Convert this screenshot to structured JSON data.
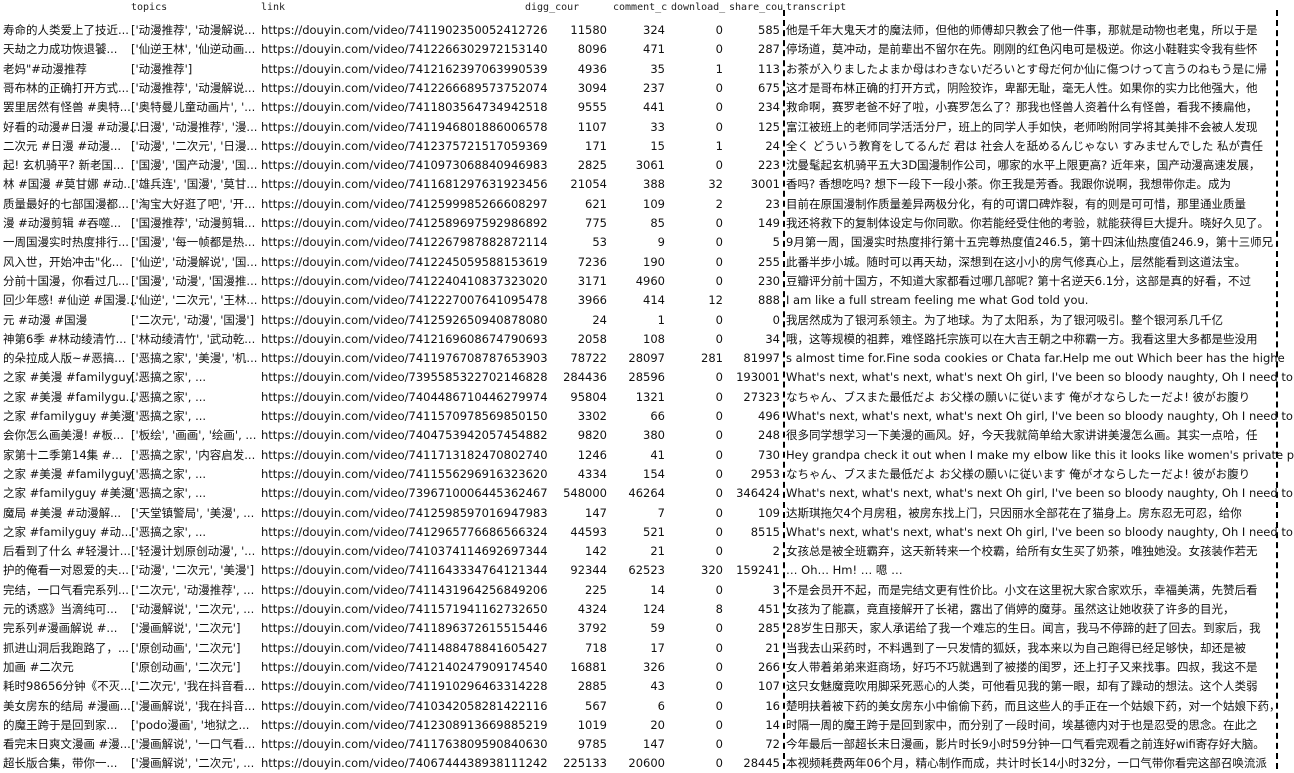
{
  "table": {
    "header": [
      "",
      "topics",
      "link",
      "digg_cour",
      "comment_c",
      "download_",
      "share_cou",
      "transcript"
    ],
    "rows": [
      [
        "寿命的人类爱上了技近...",
        "['动漫推荐', '动漫解说...",
        "https://douyin.com/video/7411902350052412726",
        11580,
        324,
        0,
        585,
        "他是千年大鬼天才的魔法师，但他的师傅却只教会了他一件事，那就是动物也老鬼，所以于是"
      ],
      [
        "天劫之力成功恢退饕...",
        "['仙逆王林', '仙逆动画...",
        "https://douyin.com/video/7412266302972153140",
        8096,
        471,
        0,
        287,
        "停场道，莫冲动，是前辈出不留尔在先。刚刚的红色闪电可是极逆。你这小鞋鞋实令我有些怀"
      ],
      [
        "老妈\"#动漫推荐",
        "['动漫推荐']",
        "https://douyin.com/video/7412162397063990539",
        4936,
        35,
        1,
        113,
        "お茶が入りましたよまか母はわきないだろいとす母だ何か仙に傷つけって言うのねもう是に帰"
      ],
      [
        "哥布林的正确打开方式...",
        "['动漫推荐', '动漫解说...",
        "https://douyin.com/video/7412266689573752074",
        3094,
        237,
        0,
        675,
        "这才是哥布林正确的打开方式，阴险狡诈，卑鄙无耻，毫无人性。如果你的实力比他强大，他"
      ],
      [
        "罢里居然有怪兽 #奥特...",
        "['奥特曼儿童动画片', '...",
        "https://douyin.com/video/7411803564734942518",
        9555,
        441,
        0,
        234,
        "救命啊，赛罗老爸不好了啦，小赛罗怎么了？那我也怪兽人资着什么有怪兽，看我不揍扁他，"
      ],
      [
        "好看的动漫#日漫 #动漫...",
        "['日漫', '动漫推荐', '漫...",
        "https://douyin.com/video/7411946801886006578",
        1107,
        33,
        0,
        125,
        "富江被班上的老师同学活活分尸，班上的同学人手如快，老师哟附同学将其美排不会被人发现"
      ],
      [
        "二次元 #日漫 #动漫...",
        "['动漫', '二次元', '日漫...",
        "https://douyin.com/video/7412375721517059369",
        171,
        15,
        1,
        24,
        "全く どういう教育をしてるんだ 君は 社会人を舐めるんじゃない すみませんでした 私が責任"
      ],
      [
        "起! 玄机骑平? 新老国...",
        "['国漫', '国产动漫', '国...",
        "https://douyin.com/video/7410973068840946983",
        2825,
        3061,
        0,
        223,
        "沈曼髦起玄机骑平五大3D国漫制作公司，哪家的水平上限更高? 近年来，国产动漫高速发展，"
      ],
      [
        "林 #国漫 #莫甘娜 #动...",
        "['雄兵连', '国漫', '莫甘...",
        "https://douyin.com/video/7411681297631923456",
        21054,
        388,
        32,
        3001,
        "香吗? 香想吃吗? 想下一段下一段小茶。你王我是芳香。我跟你说啊，我想带你走。成为"
      ],
      [
        "质量最好的七部国漫都...",
        "['淘宝大好逛了吧', '开...",
        "https://douyin.com/video/7412599985266608297",
        621,
        109,
        2,
        23,
        "目前在原国漫制作质量差异两极分化，有的可谓口碑炸裂，有的则是可可惜，那里通业质量"
      ],
      [
        "漫 #动漫剪辑 #吞噬...",
        "['国漫推荐', '动漫剪辑...",
        "https://douyin.com/video/7412589697592986892",
        775,
        85,
        0,
        149,
        "我还将救下的复制体设定与你同歌。你若能经受住他的考验，就能获得巨大提升。晓好久见了。"
      ],
      [
        "一周国漫实时热度排行...",
        "['国漫', '每一帧都是热...",
        "https://douyin.com/video/7412267987882872114",
        53,
        9,
        0,
        5,
        "9月第一周，国漫实时热度排行第十五完尊热度值246.5，第十四沫仙热度值246.9，第十三师兄"
      ],
      [
        "风入世，开始冲击\"化...",
        "['仙逆', '动漫解说', '国...",
        "https://douyin.com/video/7412245059588153619",
        7236,
        190,
        0,
        255,
        "此番半步小城。随时可以再天劫，深想到在这小小的房气修真心上，层然能看到这道法宝。"
      ],
      [
        "分前十国漫，你看过几...",
        "['国漫', '动漫', '国漫推...",
        "https://douyin.com/video/7412240410837323020",
        3171,
        4960,
        0,
        230,
        "豆瓣评分前十国方，不知道大家都看过哪几部呢? 第十名逆天6.1分，这部是真的好看，不过"
      ],
      [
        "回少年感! #仙逆 #国漫...",
        "['仙逆', '二次元', '王林...",
        "https://douyin.com/video/7412227007641095478",
        3966,
        414,
        12,
        888,
        "I am like a full stream feeling me what God told you."
      ],
      [
        "元 #动漫 #国漫",
        "['二次元', '动漫', '国漫']",
        "https://douyin.com/video/7412592650940878080",
        24,
        1,
        0,
        0,
        "我居然成为了银河系领主。为了地球。为了太阳系，为了银河吸引。整个银河系几千亿"
      ],
      [
        "神第6季 #林动绫清竹...",
        "['林动绫清竹', '武动乾...",
        "https://douyin.com/video/7412169608674790693",
        2058,
        108,
        0,
        34,
        "哦，这等规模的祖葬，难怪路托宗族可以在大吉王朝之中称霸一方。我看这里大多都是些没用"
      ],
      [
        "的朵拉成人版~#恶搞...",
        "['恶搞之家', '美漫', '机...",
        "https://douyin.com/video/7411976708787653903",
        78722,
        28097,
        281,
        81997,
        "s almost time for.Fine soda cookies or Chata far.Help me out Which beer has the highe"
      ],
      [
        "之家 #美漫 #familyguy...",
        "['恶搞之家', ...",
        "https://douyin.com/video/7395585322702146828",
        284436,
        28596,
        0,
        193001,
        "What's next, what's next, what's next Oh girl, I've been so bloody naughty, Oh I need to"
      ],
      [
        "之家 #美漫 #familygu...",
        "['恶搞之家', ...",
        "https://douyin.com/video/7404486710446279974",
        95804,
        1321,
        0,
        27323,
        "なちゃん、ブスまた最低だよ お父様の願いに従います 俺がオならしたーだよ! 彼がお腹り"
      ],
      [
        "之家 #familyguy #美漫",
        "['恶搞之家', ...",
        "https://douyin.com/video/7411570978569850150",
        3302,
        66,
        0,
        496,
        "What's next, what's next, what's next Oh girl, I've been so bloody naughty, Oh I need to"
      ],
      [
        "会你怎么画美漫! #板...",
        "['板绘', '画画', '绘画', ...",
        "https://douyin.com/video/7404753942057454882",
        9820,
        380,
        0,
        248,
        "很多同学想学习一下美漫的画风。好，今天我就简单给大家讲讲美漫怎么画。其实一点哈，任"
      ],
      [
        "家第十二季第14集 #...",
        "['恶搞之家', '内容启发...",
        "https://douyin.com/video/7411713182470802740",
        1246,
        41,
        0,
        730,
        "Hey grandpa check it out when I make my elbow like this it looks like women's private p"
      ],
      [
        "之家 #美漫 #familyguy",
        "['恶搞之家', ...",
        "https://douyin.com/video/7411556296916323620",
        4334,
        154,
        0,
        2953,
        "なちゃん、ブスまた最低だよ お父様の願いに従います 俺がオならしたーだよ! 彼がお腹り"
      ],
      [
        "之家 #familyguy #美漫",
        "['恶搞之家', ...",
        "https://douyin.com/video/7396710006445362467",
        548000,
        46264,
        0,
        346424,
        "What's next, what's next, what's next Oh girl, I've been so bloody naughty, Oh I need to"
      ],
      [
        "魔局 #美漫 #动漫解...",
        "['天堂镇警局', '美漫', ...",
        "https://douyin.com/video/7412598597016947983",
        147,
        7,
        0,
        109,
        "达斯琪拖欠4个月房租，被房东找上门，只因丽水全部花在了猫身上。房东忍无可忍，给你"
      ],
      [
        "之家 #familyguy #动...",
        "['恶搞之家', ...",
        "https://douyin.com/video/7412965776686566324",
        44593,
        521,
        0,
        8515,
        "What's next, what's next, what's next Oh girl, I've been so bloody naughty, Oh I need to"
      ],
      [
        "后看到了什么 #轻漫计...",
        "['轻漫计划原创动漫', '...",
        "https://douyin.com/video/7410374114692697344",
        142,
        21,
        0,
        2,
        "女孩总是被全班霸弃，这天新转来一个校霸，给所有女生买了奶茶，唯独她没。女孩装作若无"
      ],
      [
        "护的俺看一对恩爱的夫...",
        "['动漫', '二次元', '美漫']",
        "https://douyin.com/video/7411643334764121344",
        92344,
        62523,
        320,
        159241,
        "… Oh… Hm! … 嗯 …"
      ],
      [
        "完结，一口气看完系列...",
        "['二次元', '动漫推荐', ...",
        "https://douyin.com/video/7411431964256849206",
        225,
        14,
        0,
        3,
        "不是会员开不起，而是完结文更有性价比。小文在这里祝大家合家欢乐，幸福美满，先赞后看"
      ],
      [
        "元的诱惑》当滴纯可...",
        "['动漫解说', '二次元', ...",
        "https://douyin.com/video/7411571941162732650",
        4324,
        124,
        8,
        451,
        "女孩为了能赢，竟直接解开了长裙，露出了俏婷的魔芽。虽然这让她收获了许多的目光，"
      ],
      [
        "完系列#漫画解说 #...",
        "['漫画解说', '二次元']",
        "https://douyin.com/video/7411896372615515446",
        3792,
        59,
        0,
        285,
        "28岁生日那天，家人承诺给了我一个难忘的生日。闻言，我马不停蹄的赶了回去。到家后，我"
      ],
      [
        "抓进山洞后我跑路了，...",
        "['原创动画', '二次元']",
        "https://douyin.com/video/7411488478841605427",
        718,
        17,
        0,
        21,
        "当我去山采药时，不料遇到了一只发情的狐妖，我本来以为自己跑得已经足够快，却还是被"
      ],
      [
        "加画 #二次元",
        "['原创动画', '二次元']",
        "https://douyin.com/video/7412140247909174540",
        16881,
        326,
        0,
        266,
        "女人带着弟弟来逛商场，好巧不巧就遇到了被搂的闺罗，还上打子又来找事。四叔，我这不是"
      ],
      [
        "耗时98656分钟《不灭...",
        "['二次元', '我在抖音看...",
        "https://douyin.com/video/7411910296463314228",
        2885,
        43,
        0,
        107,
        "这只女魅魔竟吹用脚采死恶心的人类，可他看见我的第一眼，却有了躁动的想法。这个人类弱"
      ],
      [
        "美女房东的结局 #漫画...",
        "['漫画解说', '我在抖音...",
        "https://douyin.com/video/7410342058281422116",
        567,
        6,
        0,
        16,
        "楚明扶着被下药的美女房东小中偷偷下药，而且这些人的手正在一个姑娘下药，对一个姑娘下药，"
      ],
      [
        "的魔王跨于是回到家...",
        "['podo漫画', '地狱之...",
        "https://douyin.com/video/7412308913669885219",
        1019,
        20,
        0,
        14,
        "时隔一周的魔王跨于是回到家中，而分别了一段时间，埃基德内对于也是忍受的思念。在此之"
      ],
      [
        "看完末日爽文漫画 #漫...",
        "['漫画解说', '一口气看...",
        "https://douyin.com/video/7411763809590840630",
        9785,
        147,
        0,
        72,
        "今年最后一部超长末日漫画，影片时长9小时59分钟一口气看完观看之前连好wifi寄存好大脑。"
      ],
      [
        "超长版合集，带你一...",
        "['漫画解说', '二次元', ...",
        "https://douyin.com/video/7406744438938111242",
        225133,
        20600,
        0,
        28445,
        "本视频耗费两年06个月，精心制作而成，共计时长14小时32分，一口气带你看完这部召唤流派"
      ]
    ]
  }
}
